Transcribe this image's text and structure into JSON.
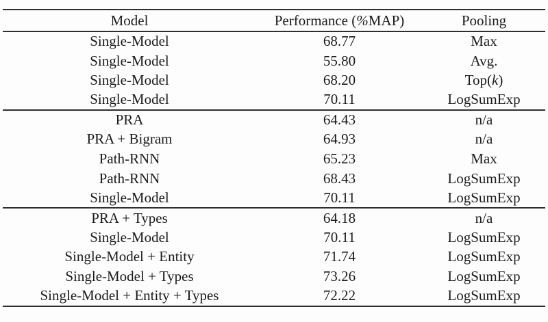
{
  "page": {
    "background_color": "#fdfdfd",
    "text_color": "#1b1b1b",
    "rule_color": "#2e2e2e"
  },
  "table": {
    "columns": [
      "Model",
      "Performance (*%*MAP)",
      "Pooling"
    ],
    "sections": [
      {
        "rows": [
          {
            "model": "Single-Model",
            "performance": "68.77",
            "performance_bold": false,
            "pooling": "Max"
          },
          {
            "model": "Single-Model",
            "performance": "55.80",
            "performance_bold": false,
            "pooling": "Avg."
          },
          {
            "model": "Single-Model",
            "performance": "68.20",
            "performance_bold": false,
            "pooling": "Top(*k*)"
          },
          {
            "model": "Single-Model",
            "performance": "70.11",
            "performance_bold": true,
            "pooling": "LogSumExp"
          }
        ]
      },
      {
        "rows": [
          {
            "model": "PRA",
            "performance": "64.43",
            "performance_bold": false,
            "pooling": "n/a"
          },
          {
            "model": "PRA + Bigram",
            "performance": "64.93",
            "performance_bold": false,
            "pooling": "n/a"
          },
          {
            "model": "Path-RNN",
            "performance": "65.23",
            "performance_bold": false,
            "pooling": "Max"
          },
          {
            "model": "Path-RNN",
            "performance": "68.43",
            "performance_bold": false,
            "pooling": "LogSumExp"
          },
          {
            "model": "Single-Model",
            "performance": "70.11",
            "performance_bold": true,
            "pooling": "LogSumExp"
          }
        ]
      },
      {
        "rows": [
          {
            "model": "PRA + Types",
            "performance": "64.18",
            "performance_bold": false,
            "pooling": "n/a"
          },
          {
            "model": "Single-Model",
            "performance": "70.11",
            "performance_bold": false,
            "pooling": "LogSumExp"
          },
          {
            "model": "Single-Model + Entity",
            "performance": "71.74",
            "performance_bold": false,
            "pooling": "LogSumExp"
          },
          {
            "model": "Single-Model + Types",
            "performance": "73.26",
            "performance_bold": true,
            "pooling": "LogSumExp"
          },
          {
            "model": "Single-Model + Entity + Types",
            "performance": "72.22",
            "performance_bold": false,
            "pooling": "LogSumExp"
          }
        ]
      }
    ]
  }
}
